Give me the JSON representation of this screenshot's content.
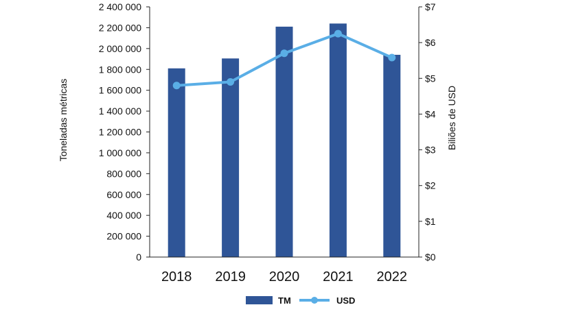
{
  "chart_data": {
    "type": "bar",
    "categories": [
      "2018",
      "2019",
      "2020",
      "2021",
      "2022"
    ],
    "series": [
      {
        "name": "TM",
        "kind": "bar",
        "axis": "left",
        "color": "#2f5597",
        "values": [
          1810000,
          1905000,
          2210000,
          2240000,
          1940000
        ]
      },
      {
        "name": "USD",
        "kind": "line",
        "axis": "right",
        "color": "#5aaee6",
        "values": [
          4.8,
          4.9,
          5.7,
          6.25,
          5.58
        ]
      }
    ],
    "left_axis": {
      "label": "Toneladas métricas",
      "range": [
        0,
        2400000
      ],
      "ticks": [
        {
          "value": 0,
          "label": "0"
        },
        {
          "value": 200000,
          "label": "200 000"
        },
        {
          "value": 400000,
          "label": "400 000"
        },
        {
          "value": 600000,
          "label": "600 000"
        },
        {
          "value": 800000,
          "label": "800 000"
        },
        {
          "value": 1000000,
          "label": "1 000 000"
        },
        {
          "value": 1200000,
          "label": "1 200 000"
        },
        {
          "value": 1400000,
          "label": "1 400 000"
        },
        {
          "value": 1600000,
          "label": "1 600 000"
        },
        {
          "value": 1800000,
          "label": "1 800 000"
        },
        {
          "value": 2000000,
          "label": "2 000 000"
        },
        {
          "value": 2200000,
          "label": "2 200 000"
        },
        {
          "value": 2400000,
          "label": "2 400 000"
        }
      ]
    },
    "right_axis": {
      "label": "Biliões de USD",
      "range": [
        0,
        7
      ],
      "ticks": [
        {
          "value": 0,
          "label": "$0"
        },
        {
          "value": 1,
          "label": "$1"
        },
        {
          "value": 2,
          "label": "$2"
        },
        {
          "value": 3,
          "label": "$3"
        },
        {
          "value": 4,
          "label": "$4"
        },
        {
          "value": 5,
          "label": "$5"
        },
        {
          "value": 6,
          "label": "$6"
        },
        {
          "value": 7,
          "label": "$7"
        }
      ]
    },
    "grid": false,
    "legend": {
      "position": "bottom",
      "items": [
        "TM",
        "USD"
      ]
    }
  }
}
